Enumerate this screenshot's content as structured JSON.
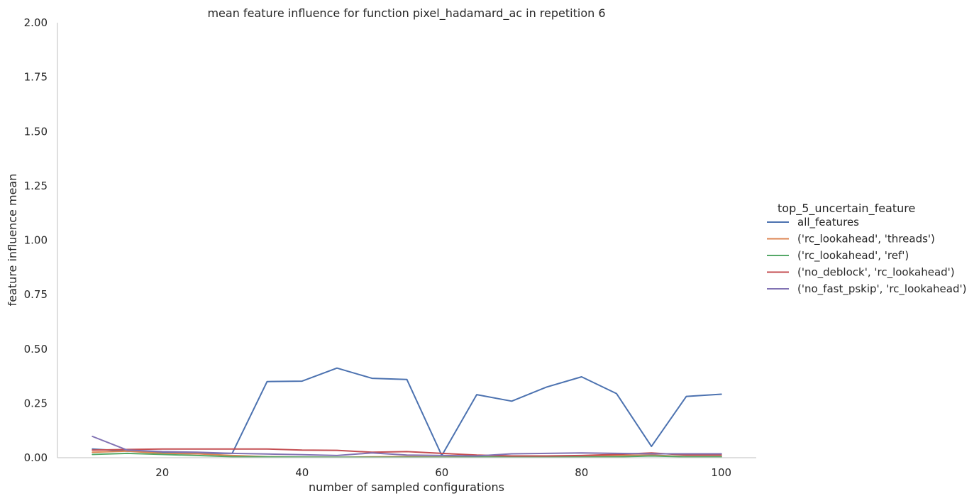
{
  "chart_data": {
    "type": "line",
    "title": "mean feature influence for function pixel_hadamard_ac in repetition 6",
    "xlabel": "number of sampled configurations",
    "ylabel": "feature influence mean",
    "xlim": [
      5,
      105
    ],
    "ylim": [
      0,
      2
    ],
    "xticks": [
      20,
      40,
      60,
      80,
      100
    ],
    "yticks": [
      "0.00",
      "0.25",
      "0.50",
      "0.75",
      "1.00",
      "1.25",
      "1.50",
      "1.75",
      "2.00"
    ],
    "grid": false,
    "legend": {
      "title": "top_5_uncertain_feature",
      "placement": "right"
    },
    "x": [
      10,
      15,
      20,
      25,
      30,
      35,
      40,
      45,
      50,
      55,
      60,
      65,
      70,
      75,
      80,
      85,
      90,
      95,
      100
    ],
    "series": [
      {
        "name": "all_features",
        "color": "#4c72b0",
        "values": [
          0.04,
          0.03,
          0.025,
          0.02,
          0.02,
          0.35,
          0.352,
          0.412,
          0.365,
          0.36,
          0.01,
          0.29,
          0.26,
          0.325,
          0.372,
          0.295,
          0.052,
          0.282,
          0.292
        ]
      },
      {
        "name": "('rc_lookahead', 'threads')",
        "color": "#dd8452",
        "values": [
          0.025,
          0.03,
          0.02,
          0.018,
          0.01,
          0.005,
          0.003,
          0.002,
          0.004,
          0.005,
          0.003,
          0.004,
          0.005,
          0.006,
          0.008,
          0.01,
          0.012,
          0.005,
          0.005
        ]
      },
      {
        "name": "('rc_lookahead', 'ref')",
        "color": "#55a868",
        "values": [
          0.015,
          0.02,
          0.015,
          0.01,
          0.005,
          0.004,
          0.003,
          0.002,
          0.002,
          0.002,
          0.002,
          0.003,
          0.003,
          0.003,
          0.003,
          0.004,
          0.008,
          0.004,
          0.004
        ]
      },
      {
        "name": "('no_deblock', 'rc_lookahead')",
        "color": "#c44e52",
        "values": [
          0.035,
          0.038,
          0.04,
          0.04,
          0.04,
          0.04,
          0.035,
          0.034,
          0.025,
          0.028,
          0.02,
          0.012,
          0.008,
          0.008,
          0.01,
          0.015,
          0.022,
          0.012,
          0.012
        ]
      },
      {
        "name": "('no_fast_pskip', 'rc_lookahead')",
        "color": "#8172b3",
        "values": [
          0.098,
          0.035,
          0.028,
          0.025,
          0.02,
          0.017,
          0.014,
          0.01,
          0.022,
          0.012,
          0.01,
          0.008,
          0.018,
          0.02,
          0.022,
          0.02,
          0.018,
          0.018,
          0.018
        ]
      }
    ]
  }
}
